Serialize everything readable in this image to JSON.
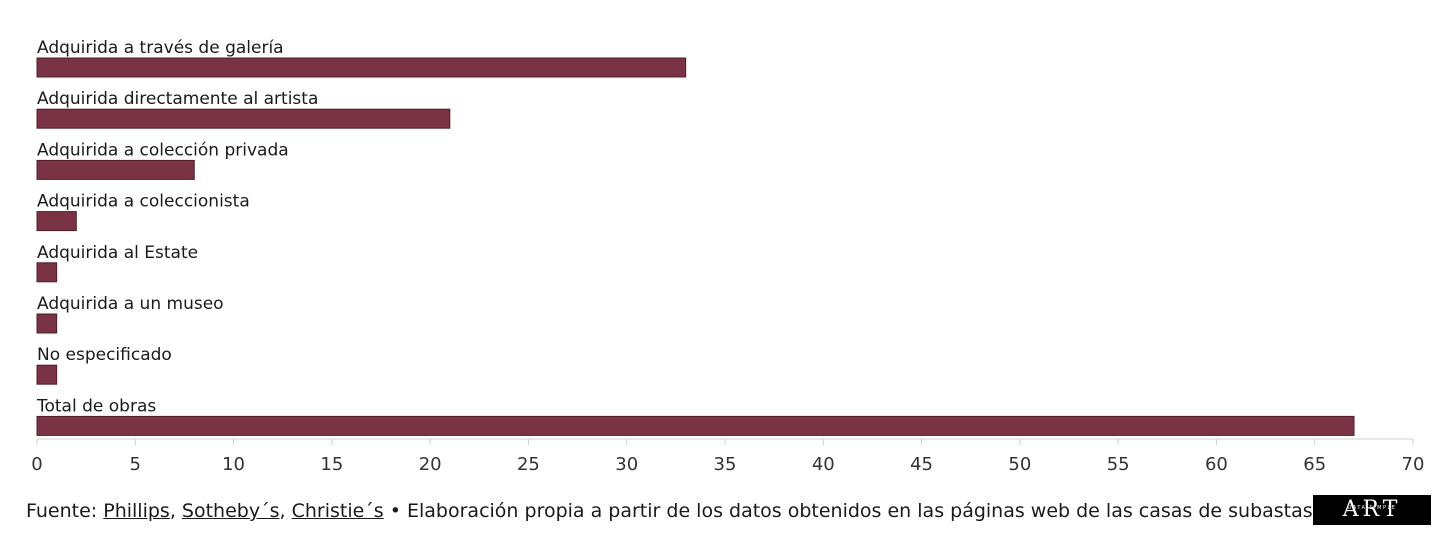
{
  "chart_data": {
    "type": "bar",
    "orientation": "horizontal",
    "categories": [
      "Adquirida a través de galería",
      "Adquirida directamente al artista",
      "Adquirida a colección privada",
      "Adquirida a coleccionista",
      "Adquirida al Estate",
      "Adquirida a un museo",
      "No especificado",
      "Total de obras"
    ],
    "values": [
      33,
      21,
      8,
      2,
      1,
      1,
      1,
      67
    ],
    "xlim": [
      0,
      70
    ],
    "xticks": [
      "0",
      "5",
      "10",
      "15",
      "20",
      "25",
      "30",
      "35",
      "40",
      "45",
      "50",
      "55",
      "60",
      "65",
      "70"
    ],
    "bar_color": "#7a3344",
    "grid": false
  },
  "footer": {
    "prefix": "Fuente: ",
    "sources": [
      "Phillips",
      "Sotheby´s",
      "Christie´s"
    ],
    "sep1": ", ",
    "sep2": ", ",
    "suffix": " • Elaboración propia a partir de los datos obtenidos en las páginas web de las casas de subastas."
  },
  "logo": {
    "text_main": "ART",
    "text_sub": "DATA SIMPLE"
  }
}
